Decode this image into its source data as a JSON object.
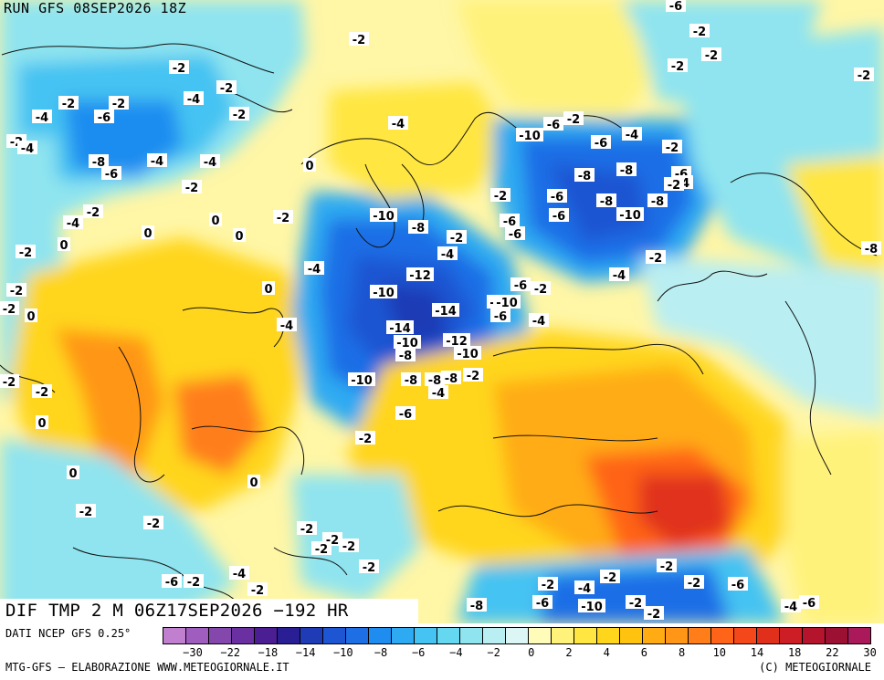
{
  "header": {
    "run_title": "RUN GFS 08SEP2026 18Z"
  },
  "field": {
    "label": "DIF TMP 2 M 06Z17SEP2026 −192 HR"
  },
  "footer": {
    "source": "DATI NCEP GFS 0.25°",
    "credit_left": "MTG-GFS – ELABORAZIONE WWW.METEOGIORNALE.IT",
    "credit_right": "(C) METEOGIORNALE"
  },
  "legend": {
    "ticks": [
      "−30",
      "−22",
      "−18",
      "−14",
      "−10",
      "−8",
      "−6",
      "−4",
      "−2",
      "0",
      "2",
      "4",
      "6",
      "8",
      "10",
      "14",
      "18",
      "22",
      "30"
    ],
    "colors": [
      "#c17fd0",
      "#a05dc0",
      "#8448ad",
      "#6a2fa0",
      "#4b1e94",
      "#2a1e95",
      "#1f3bb5",
      "#1e55d2",
      "#1e6ee6",
      "#1f8df0",
      "#2eaaf2",
      "#45c3f2",
      "#66d7f0",
      "#8fe4ef",
      "#b9eef2",
      "#dcf6f5",
      "#fffbb8",
      "#fff27a",
      "#ffe640",
      "#ffd61c",
      "#ffc20e",
      "#ffac14",
      "#ff9618",
      "#ff7e1a",
      "#ff6418",
      "#f4481a",
      "#e0301c",
      "#cc1e24",
      "#b4142c",
      "#9c1034",
      "#aa1a5a"
    ],
    "tick_indices": [
      0,
      2,
      3,
      4,
      5,
      6,
      7,
      8,
      9,
      10,
      11,
      12,
      13,
      14,
      15,
      16,
      17,
      18,
      19
    ]
  },
  "contour_labels": [
    "-4",
    "-2",
    "-2",
    "-2",
    "-2",
    "-2",
    "-2",
    "-2",
    "-4",
    "-2",
    "-2",
    "-6",
    "-4",
    "-2",
    "-6",
    "-2",
    "-4",
    "-2",
    "-4",
    "-6",
    "-10",
    "-4",
    "-2",
    "-6",
    "-8",
    "-6",
    "-4",
    "-4",
    "-2",
    "-8",
    "-8",
    "-6",
    "-4",
    "-2",
    "-8",
    "-6",
    "-8",
    "-10",
    "-6",
    "-2",
    "-2",
    "-10",
    "-6",
    "-8",
    "-4",
    "-2",
    "-4",
    "-2",
    "-6",
    "-4",
    "-12",
    "-10",
    "-10",
    "-6",
    "-14",
    "-8",
    "-12",
    "-14",
    "-10",
    "-10",
    "-8",
    "-10",
    "-8",
    "-10",
    "-8",
    "-2",
    "-4",
    "-6",
    "-4",
    "-2",
    "0",
    "0",
    "0",
    "0",
    "0",
    "0",
    "0",
    "0",
    "0",
    "0",
    "-2",
    "-2",
    "-2",
    "-2",
    "-2",
    "-4",
    "-2",
    "-4",
    "-2",
    "-2",
    "-2",
    "-2",
    "-6",
    "-2",
    "-4",
    "-2",
    "-2",
    "-2",
    "-4",
    "-2",
    "-6",
    "-2",
    "-6",
    "-8",
    "-10",
    "-2",
    "-2",
    "-4",
    "-6",
    "-2",
    "-2",
    "-2",
    "-2",
    "-8",
    "-6"
  ]
}
